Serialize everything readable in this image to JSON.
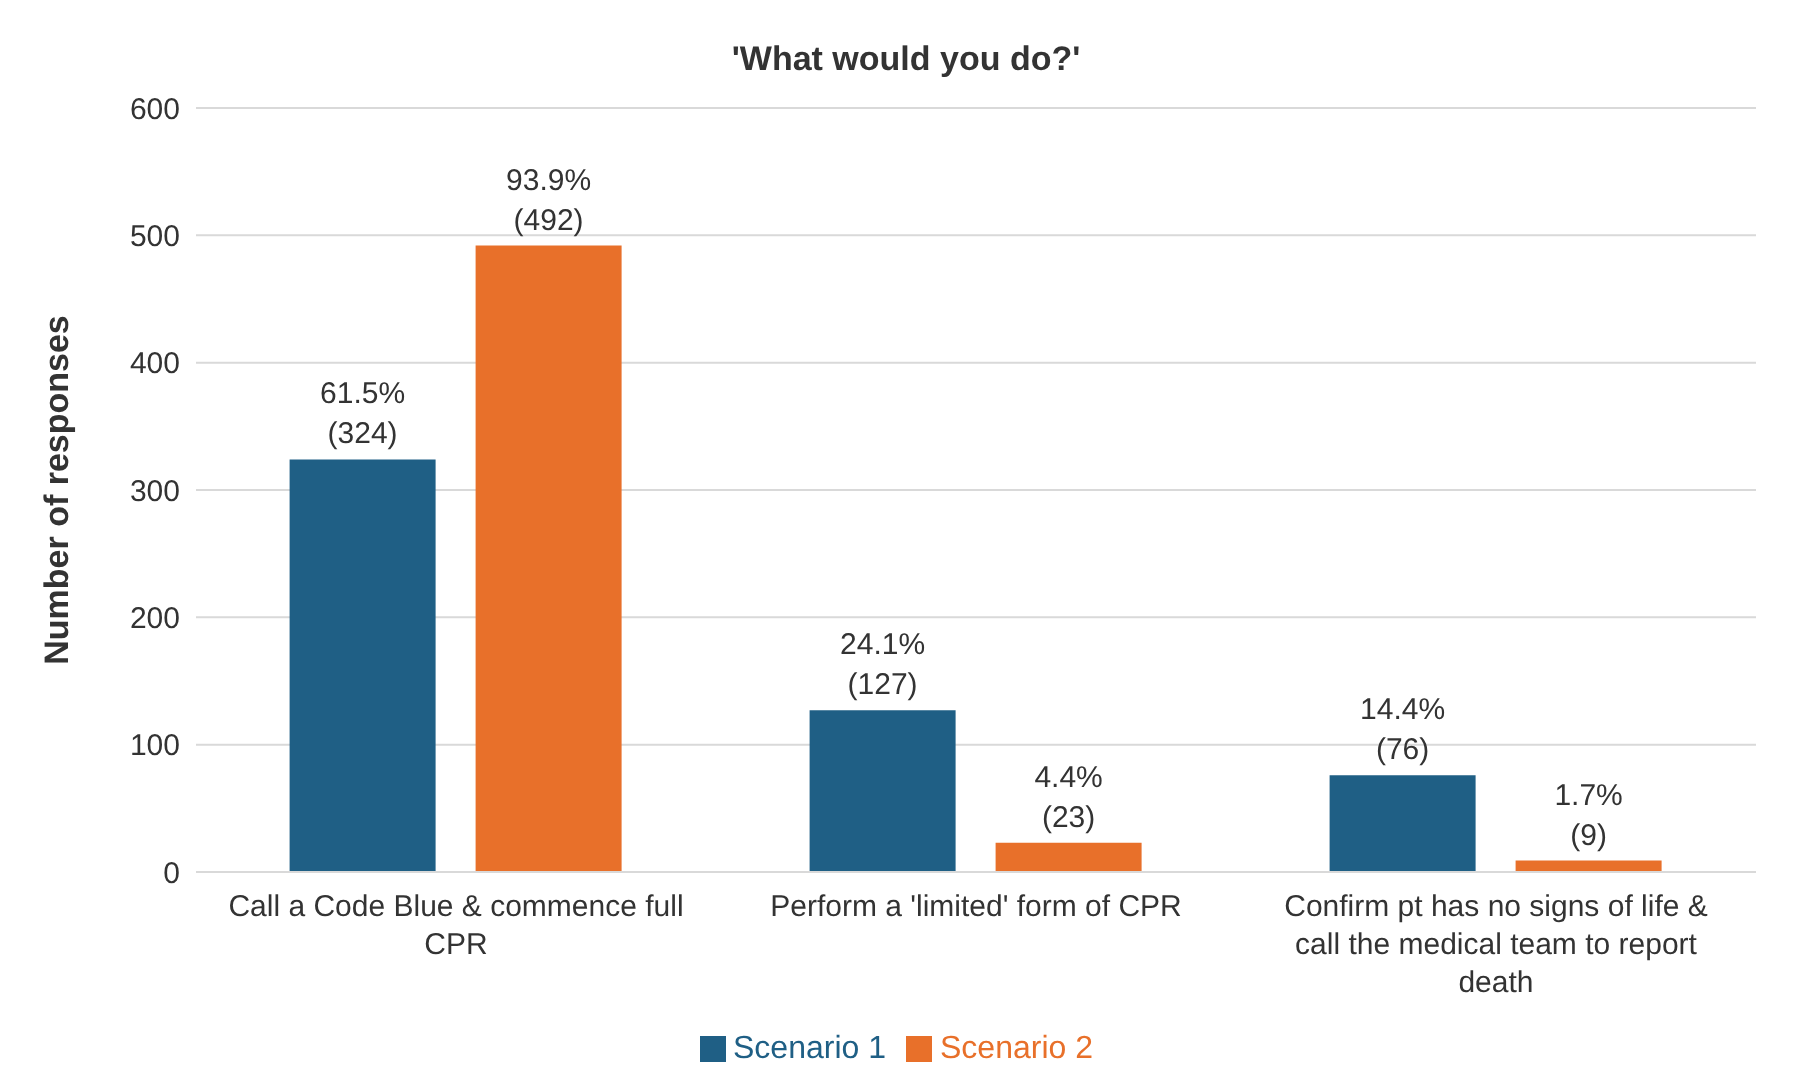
{
  "chart_data": {
    "type": "bar",
    "title": "'What would you do?'",
    "ylabel": "Number of responses",
    "categories": [
      "Call a Code Blue & commence full CPR",
      "Perform a 'limited' form of CPR",
      "Confirm pt has no signs of life & call the medical team to report death"
    ],
    "series": [
      {
        "name": "Scenario 1",
        "color": "#1f5f85",
        "values": [
          324,
          127,
          76
        ],
        "value_labels": [
          "61.5%\n(324)",
          "24.1%\n(127)",
          "14.4%\n(76)"
        ]
      },
      {
        "name": "Scenario 2",
        "color": "#e8702a",
        "values": [
          492,
          23,
          9
        ],
        "value_labels": [
          "93.9%\n(492)",
          "4.4%\n(23)",
          "1.7%\n(9)"
        ]
      }
    ],
    "ylim": [
      0,
      600
    ],
    "yticks": [
      0,
      100,
      200,
      300,
      400,
      500,
      600
    ],
    "grid": "y",
    "legend": "bottom"
  }
}
